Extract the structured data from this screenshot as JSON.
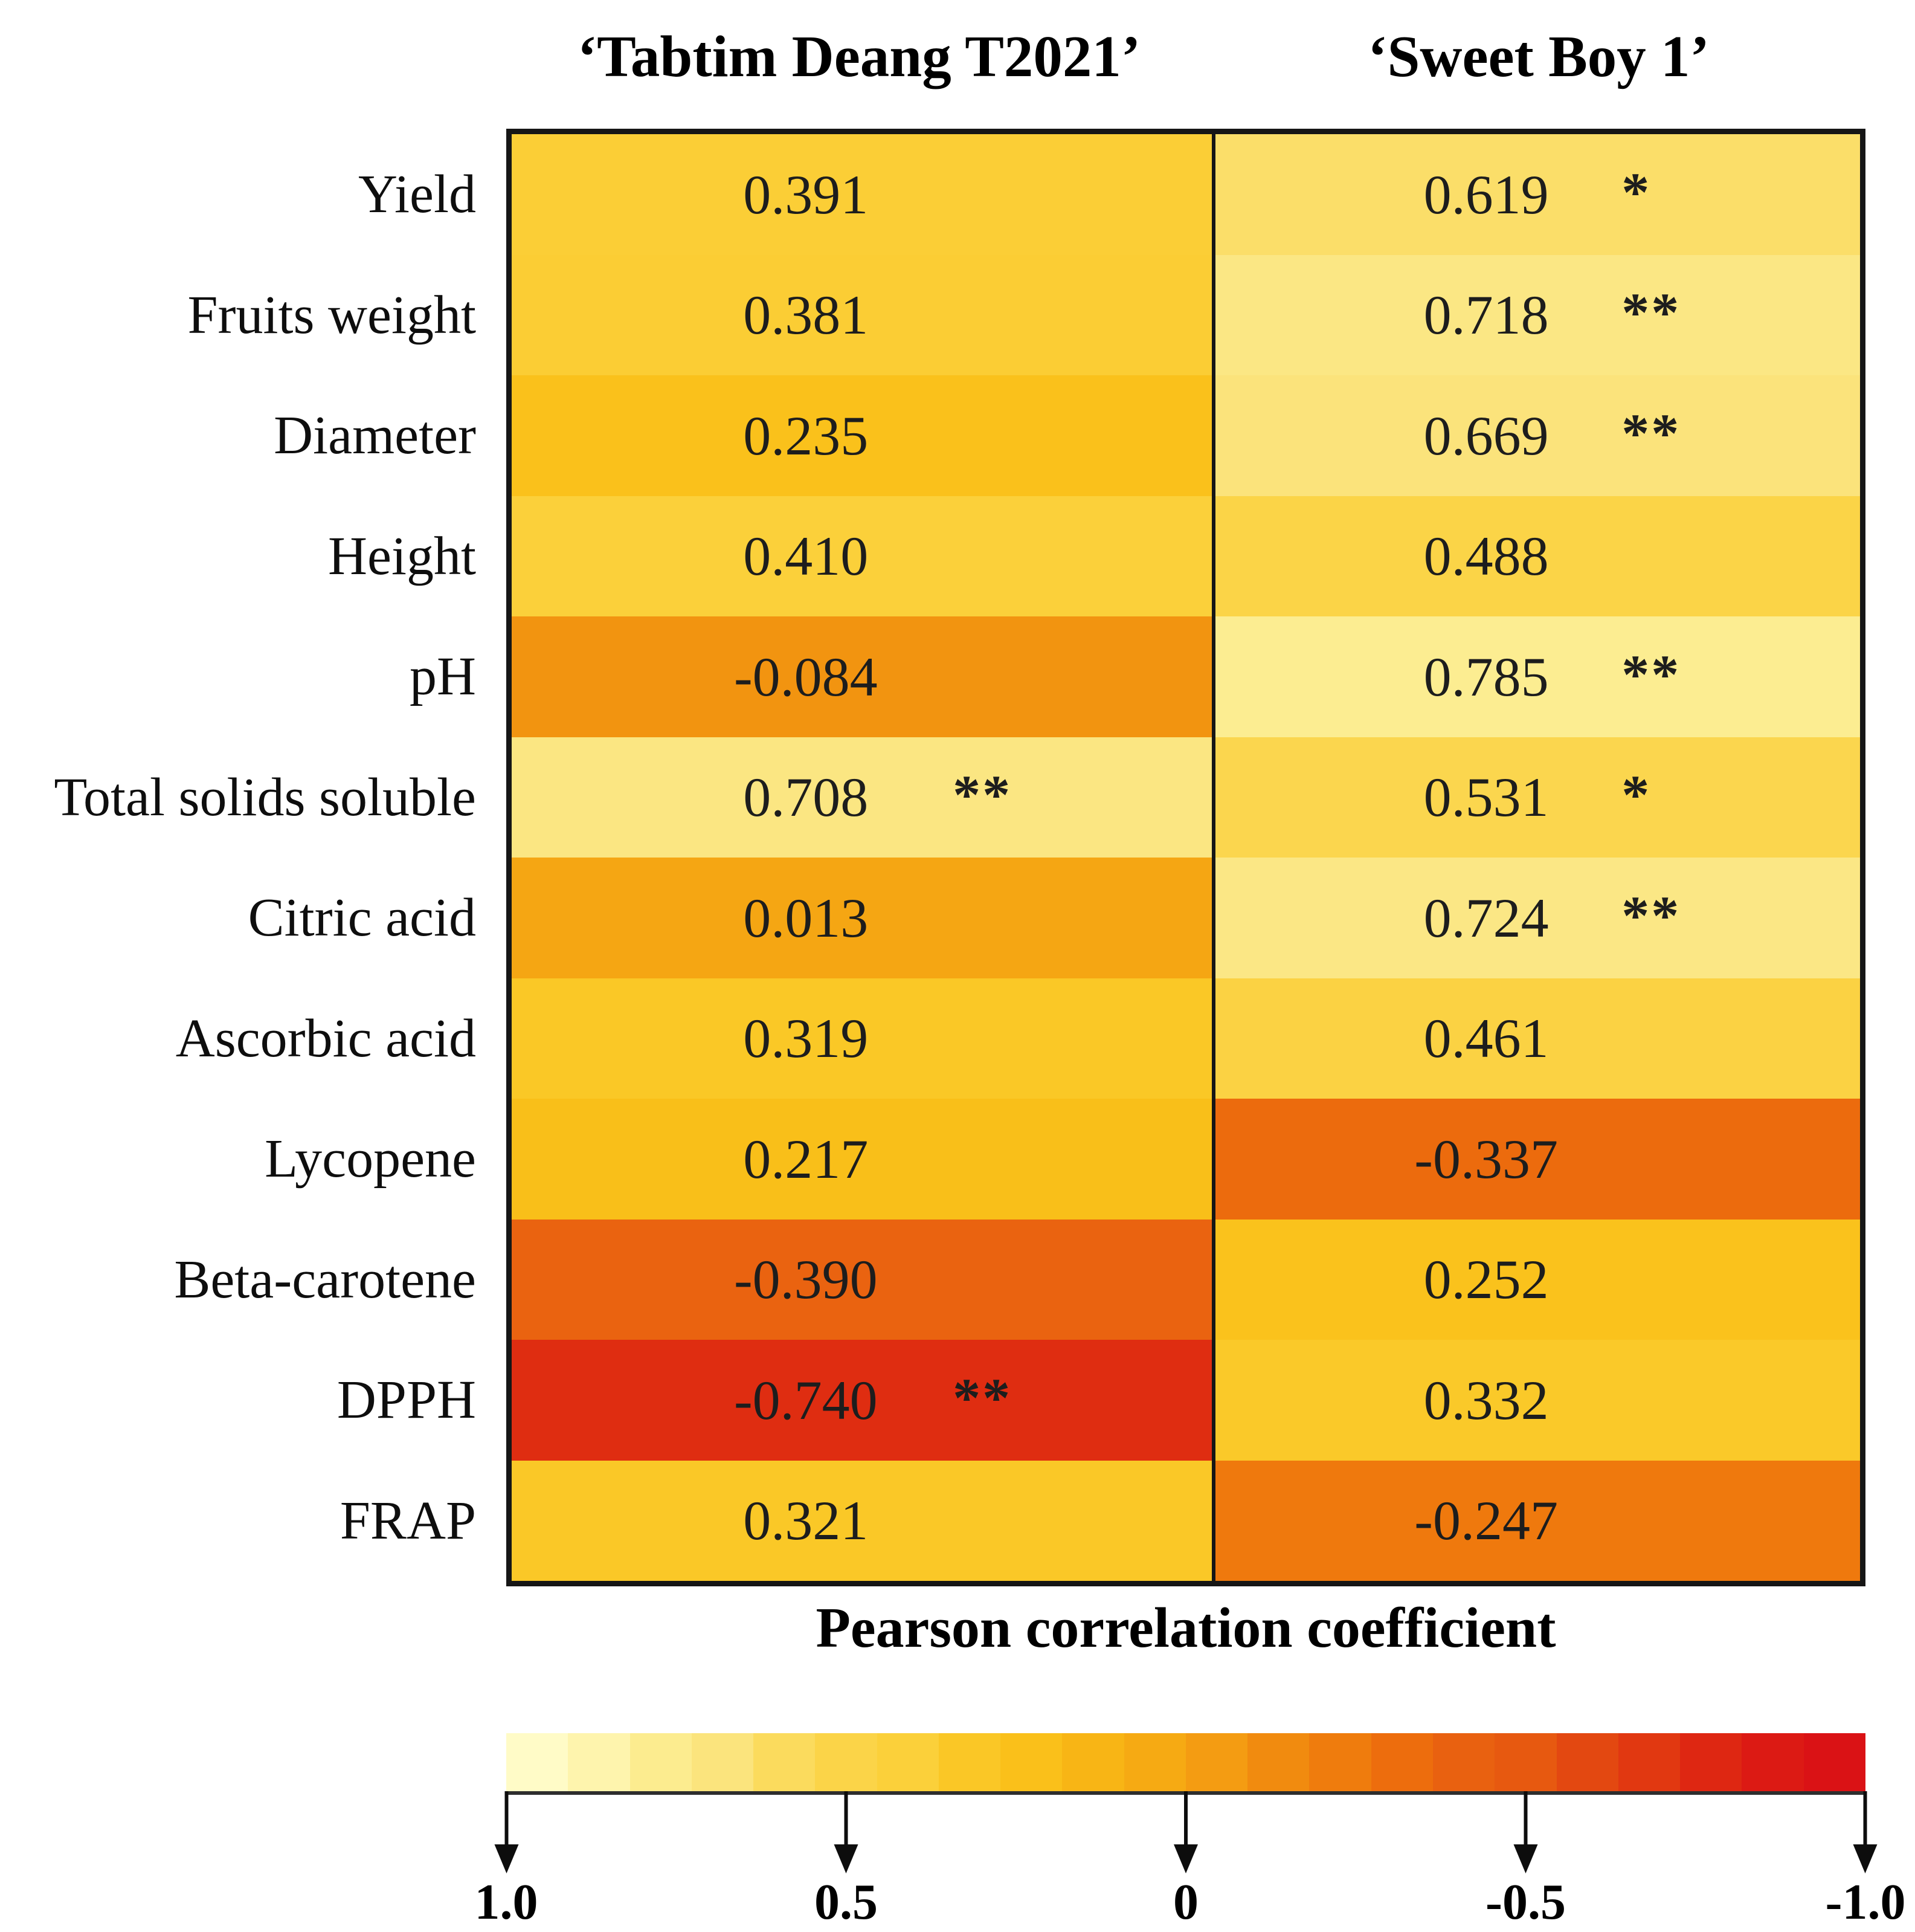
{
  "figure": {
    "columns": [
      {
        "label": "‘Tabtim Deang T2021’"
      },
      {
        "label": "‘Sweet Boy 1’"
      }
    ],
    "rows": [
      {
        "label": "Yield",
        "cells": [
          {
            "value": "0.391",
            "sig": ""
          },
          {
            "value": "0.619",
            "sig": "*"
          }
        ]
      },
      {
        "label": "Fruits weight",
        "cells": [
          {
            "value": "0.381",
            "sig": ""
          },
          {
            "value": "0.718",
            "sig": "**"
          }
        ]
      },
      {
        "label": "Diameter",
        "cells": [
          {
            "value": "0.235",
            "sig": ""
          },
          {
            "value": "0.669",
            "sig": "**"
          }
        ]
      },
      {
        "label": "Height",
        "cells": [
          {
            "value": "0.410",
            "sig": ""
          },
          {
            "value": "0.488",
            "sig": ""
          }
        ]
      },
      {
        "label": "pH",
        "cells": [
          {
            "value": "-0.084",
            "sig": ""
          },
          {
            "value": "0.785",
            "sig": "**"
          }
        ]
      },
      {
        "label": "Total solids soluble",
        "cells": [
          {
            "value": "0.708",
            "sig": "**"
          },
          {
            "value": "0.531",
            "sig": "*"
          }
        ]
      },
      {
        "label": "Citric acid",
        "cells": [
          {
            "value": "0.013",
            "sig": ""
          },
          {
            "value": "0.724",
            "sig": "**"
          }
        ]
      },
      {
        "label": "Ascorbic acid",
        "cells": [
          {
            "value": "0.319",
            "sig": ""
          },
          {
            "value": "0.461",
            "sig": ""
          }
        ]
      },
      {
        "label": "Lycopene",
        "cells": [
          {
            "value": "0.217",
            "sig": ""
          },
          {
            "value": "-0.337",
            "sig": ""
          }
        ]
      },
      {
        "label": "Beta-carotene",
        "cells": [
          {
            "value": "-0.390",
            "sig": ""
          },
          {
            "value": "0.252",
            "sig": ""
          }
        ]
      },
      {
        "label": "DPPH",
        "cells": [
          {
            "value": "-0.740",
            "sig": "**"
          },
          {
            "value": "0.332",
            "sig": ""
          }
        ]
      },
      {
        "label": "FRAP",
        "cells": [
          {
            "value": "0.321",
            "sig": ""
          },
          {
            "value": "-0.247",
            "sig": ""
          }
        ]
      }
    ],
    "colorbar": {
      "title": "Pearson correlation coefficient",
      "tick_labels": [
        "1.0",
        "0.5",
        "0",
        "-0.5",
        "-1.0"
      ],
      "tick_positions_pct": [
        0,
        25,
        50,
        75,
        100
      ],
      "segments": 22,
      "domain": [
        1,
        -1
      ],
      "color_anchors": [
        [
          1.0,
          "#FFFDD0"
        ],
        [
          0.9,
          "#FFF8BC"
        ],
        [
          0.8,
          "#FCEE94"
        ],
        [
          0.7,
          "#FBE580"
        ],
        [
          0.65,
          "#FBE178"
        ],
        [
          0.6,
          "#FBDC60"
        ],
        [
          0.55,
          "#FBD852"
        ],
        [
          0.5,
          "#FBD448"
        ],
        [
          0.45,
          "#FBD242"
        ],
        [
          0.4,
          "#FBCF38"
        ],
        [
          0.35,
          "#FACA2D"
        ],
        [
          0.3,
          "#FAC622"
        ],
        [
          0.25,
          "#FAC21C"
        ],
        [
          0.2,
          "#F9BE18"
        ],
        [
          0.1,
          "#F7B014"
        ],
        [
          0.0,
          "#F5A513"
        ],
        [
          -0.1,
          "#F29110"
        ],
        [
          -0.2,
          "#F0810D"
        ],
        [
          -0.3,
          "#EE700C"
        ],
        [
          -0.4,
          "#E96210"
        ],
        [
          -0.5,
          "#E75910"
        ],
        [
          -0.6,
          "#E34611"
        ],
        [
          -0.7,
          "#E03511"
        ],
        [
          -0.8,
          "#DD2212"
        ],
        [
          -0.9,
          "#DC1615"
        ],
        [
          -1.0,
          "#D90E15"
        ]
      ]
    }
  },
  "chart_data": {
    "type": "heatmap",
    "title": "",
    "rows": [
      "Yield",
      "Fruits weight",
      "Diameter",
      "Height",
      "pH",
      "Total solids soluble",
      "Citric acid",
      "Ascorbic acid",
      "Lycopene",
      "Beta-carotene",
      "DPPH",
      "FRAP"
    ],
    "columns": [
      "‘Tabtim Deang T2021’",
      "‘Sweet Boy 1’"
    ],
    "series": [
      {
        "name": "‘Tabtim Deang T2021’",
        "values": [
          0.391,
          0.381,
          0.235,
          0.41,
          -0.084,
          0.708,
          0.013,
          0.319,
          0.217,
          -0.39,
          -0.74,
          0.321
        ],
        "significance": [
          "",
          "",
          "",
          "",
          "",
          "**",
          "",
          "",
          "",
          "",
          "**",
          ""
        ]
      },
      {
        "name": "‘Sweet Boy 1’",
        "values": [
          0.619,
          0.718,
          0.669,
          0.488,
          0.785,
          0.531,
          0.724,
          0.461,
          -0.337,
          0.252,
          0.332,
          -0.247
        ],
        "significance": [
          "*",
          "**",
          "**",
          "",
          "**",
          "*",
          "**",
          "",
          "",
          "",
          "",
          ""
        ]
      }
    ],
    "colorbar_label": "Pearson correlation coefficient",
    "colorbar_ticks": [
      1.0,
      0.5,
      0,
      -0.5,
      -1.0
    ],
    "color_scale": {
      "max_1": "#FFFDD0",
      "mid_0": "#F5A513",
      "min_-1": "#D90E15"
    },
    "legend_position": "bottom",
    "grid": false
  }
}
